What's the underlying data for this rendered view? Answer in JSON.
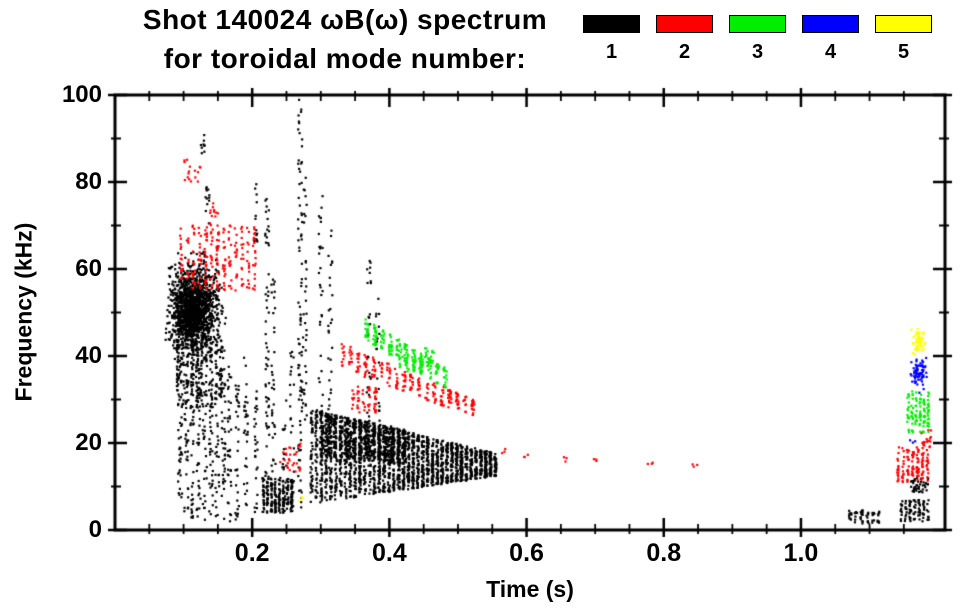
{
  "chart_data": {
    "type": "scatter",
    "title": "Shot 140024 ωB(ω) spectrum",
    "subtitle": "for toroidal mode number:",
    "xlabel": "Time (s)",
    "ylabel": "Frequency (kHz)",
    "xlim": [
      0.0,
      1.21
    ],
    "ylim": [
      0,
      100
    ],
    "grid": false,
    "legend_position": "top-right",
    "xticks": [
      {
        "v": 0.2,
        "label": "0.2"
      },
      {
        "v": 0.4,
        "label": "0.4"
      },
      {
        "v": 0.6,
        "label": "0.6"
      },
      {
        "v": 0.8,
        "label": "0.8"
      },
      {
        "v": 1.0,
        "label": "1.0"
      }
    ],
    "yticks": [
      {
        "v": 0,
        "label": "0"
      },
      {
        "v": 20,
        "label": "20"
      },
      {
        "v": 40,
        "label": "40"
      },
      {
        "v": 60,
        "label": "60"
      },
      {
        "v": 80,
        "label": "80"
      },
      {
        "v": 100,
        "label": "100"
      }
    ],
    "xtick_minor": 0.05,
    "ytick_minor": 10,
    "xtick_major_step": 0.2,
    "ytick_major_step": 20,
    "legend": [
      {
        "label": "1",
        "color": "#000000"
      },
      {
        "label": "2",
        "color": "#ff0000"
      },
      {
        "label": "3",
        "color": "#00ee00"
      },
      {
        "label": "4",
        "color": "#0000ff"
      },
      {
        "label": "5",
        "color": "#ffff00"
      }
    ],
    "series": [
      {
        "name": "toroidal mode n=1",
        "mode": 1,
        "color": "#000000",
        "clusters": [
          {
            "type": "gauss",
            "t": 0.115,
            "f": 51,
            "st": 0.035,
            "sf": 10,
            "n": 1100
          },
          {
            "type": "gauss",
            "t": 0.112,
            "f": 50,
            "st": 0.02,
            "sf": 5,
            "n": 500
          },
          {
            "type": "rect",
            "t0": 0.09,
            "t1": 0.16,
            "f0": 28,
            "f1": 44,
            "n": 220,
            "clumpT": 0.007
          },
          {
            "type": "streak",
            "t": 0.095,
            "f0": 2,
            "f1": 55,
            "n": 55
          },
          {
            "type": "streak",
            "t": 0.104,
            "f0": 2,
            "f1": 46,
            "n": 48
          },
          {
            "type": "streak",
            "t": 0.113,
            "f0": 2,
            "f1": 60,
            "n": 55
          },
          {
            "type": "streak",
            "t": 0.122,
            "f0": 2,
            "f1": 40,
            "n": 42
          },
          {
            "type": "streak",
            "t": 0.131,
            "f0": 2,
            "f1": 64,
            "n": 55
          },
          {
            "type": "streak",
            "t": 0.14,
            "f0": 3,
            "f1": 52,
            "n": 45
          },
          {
            "type": "streak",
            "t": 0.149,
            "f0": 2,
            "f1": 58,
            "n": 48
          },
          {
            "type": "streak",
            "t": 0.158,
            "f0": 2,
            "f1": 44,
            "n": 40
          },
          {
            "type": "streak",
            "t": 0.167,
            "f0": 2,
            "f1": 38,
            "n": 35
          },
          {
            "type": "streak",
            "t": 0.178,
            "f0": 2,
            "f1": 36,
            "n": 32
          },
          {
            "type": "streak",
            "t": 0.191,
            "f0": 3,
            "f1": 40,
            "n": 30
          },
          {
            "type": "streak",
            "t": 0.205,
            "f0": 4,
            "f1": 34,
            "n": 26
          },
          {
            "type": "streak",
            "t": 0.135,
            "f0": 70,
            "f1": 79,
            "n": 12
          },
          {
            "type": "streak",
            "t": 0.128,
            "f0": 86,
            "f1": 92,
            "n": 9
          },
          {
            "type": "streak",
            "t": 0.205,
            "f0": 66,
            "f1": 80,
            "n": 14
          },
          {
            "type": "streak",
            "t": 0.222,
            "f0": 8,
            "f1": 78,
            "n": 55
          },
          {
            "type": "streak",
            "t": 0.231,
            "f0": 6,
            "f1": 58,
            "n": 35
          },
          {
            "type": "streak",
            "t": 0.247,
            "f0": 4,
            "f1": 30,
            "n": 20
          },
          {
            "type": "streak",
            "t": 0.258,
            "f0": 4,
            "f1": 42,
            "n": 25
          },
          {
            "type": "streak",
            "t": 0.27,
            "f0": 2,
            "f1": 99,
            "n": 85
          },
          {
            "type": "streak",
            "t": 0.277,
            "f0": 25,
            "f1": 84,
            "n": 35
          },
          {
            "type": "streak",
            "t": 0.3,
            "f0": 18,
            "f1": 77,
            "n": 38
          },
          {
            "type": "streak",
            "t": 0.314,
            "f0": 14,
            "f1": 70,
            "n": 32
          },
          {
            "type": "streak",
            "t": 0.37,
            "f0": 24,
            "f1": 62,
            "n": 28
          },
          {
            "type": "streak",
            "t": 0.383,
            "f0": 24,
            "f1": 56,
            "n": 20
          },
          {
            "type": "band",
            "t0": 0.285,
            "t1": 0.56,
            "fc0": 17,
            "fc1": 15,
            "h0": 11,
            "h1": 2.5,
            "n": 2100,
            "clumpT": 0.007
          },
          {
            "type": "band",
            "t0": 0.3,
            "t1": 0.43,
            "fc0": 22,
            "fc1": 19,
            "h0": 5,
            "h1": 4,
            "n": 650,
            "clumpT": 0.009
          },
          {
            "type": "rect",
            "t0": 0.215,
            "t1": 0.262,
            "f0": 4,
            "f1": 12,
            "n": 240,
            "clumpT": 0.006
          },
          {
            "type": "rect",
            "t0": 1.07,
            "t1": 1.12,
            "f0": 1.5,
            "f1": 4.5,
            "n": 55,
            "clumpT": 0.008
          },
          {
            "type": "rect",
            "t0": 1.145,
            "t1": 1.19,
            "f0": 2,
            "f1": 7,
            "n": 90,
            "clumpT": 0.006
          },
          {
            "type": "rect",
            "t0": 1.16,
            "t1": 1.186,
            "f0": 8.5,
            "f1": 12,
            "n": 40
          }
        ]
      },
      {
        "name": "toroidal mode n=2",
        "mode": 2,
        "color": "#ff0000",
        "clusters": [
          {
            "type": "rect",
            "t0": 0.095,
            "t1": 0.21,
            "f0": 55,
            "f1": 70,
            "n": 230,
            "clumpT": 0.009
          },
          {
            "type": "rect",
            "t0": 0.1,
            "t1": 0.128,
            "f0": 80,
            "f1": 86,
            "n": 16
          },
          {
            "type": "rect",
            "t0": 0.138,
            "t1": 0.152,
            "f0": 70,
            "f1": 76,
            "n": 12
          },
          {
            "type": "rect",
            "t0": 0.24,
            "t1": 0.272,
            "f0": 13,
            "f1": 20,
            "n": 28
          },
          {
            "type": "band",
            "t0": 0.33,
            "t1": 0.53,
            "fc0": 40,
            "fc1": 27.5,
            "h0": 3,
            "h1": 2,
            "n": 240,
            "clumpT": 0.011
          },
          {
            "type": "rect",
            "t0": 0.345,
            "t1": 0.385,
            "f0": 27,
            "f1": 33,
            "n": 50,
            "clumpT": 0.008
          },
          {
            "type": "dots",
            "pts": [
              [
                0.565,
                18
              ],
              [
                0.6,
                17
              ],
              [
                0.655,
                16
              ],
              [
                0.7,
                15.5
              ],
              [
                0.78,
                15
              ],
              [
                0.845,
                15
              ]
            ],
            "n_each": 3
          },
          {
            "type": "rect",
            "t0": 1.14,
            "t1": 1.19,
            "f0": 11,
            "f1": 19,
            "n": 130,
            "clumpT": 0.007
          },
          {
            "type": "rect",
            "t0": 1.175,
            "t1": 1.19,
            "f0": 19,
            "f1": 23,
            "n": 20
          }
        ]
      },
      {
        "name": "toroidal mode n=3",
        "mode": 3,
        "color": "#00ee00",
        "clusters": [
          {
            "type": "band",
            "t0": 0.365,
            "t1": 0.49,
            "fc0": 46,
            "fc1": 34,
            "h0": 2.5,
            "h1": 2.5,
            "n": 200,
            "clumpT": 0.011
          },
          {
            "type": "rect",
            "t0": 0.415,
            "t1": 0.47,
            "f0": 36,
            "f1": 42,
            "n": 45,
            "clumpT": 0.009
          },
          {
            "type": "rect",
            "t0": 1.155,
            "t1": 1.19,
            "f0": 22,
            "f1": 32,
            "n": 110,
            "clumpT": 0.006
          }
        ]
      },
      {
        "name": "toroidal mode n=4",
        "mode": 4,
        "color": "#0000ff",
        "clusters": [
          {
            "type": "gauss",
            "t": 1.172,
            "f": 36,
            "st": 0.012,
            "sf": 3.5,
            "n": 70
          },
          {
            "type": "dots",
            "pts": [
              [
                1.163,
                20.5
              ]
            ],
            "n_each": 3
          }
        ]
      },
      {
        "name": "toroidal mode n=5",
        "mode": 5,
        "color": "#ffff00",
        "clusters": [
          {
            "type": "gauss",
            "t": 1.171,
            "f": 43.5,
            "st": 0.01,
            "sf": 2.8,
            "n": 55
          },
          {
            "type": "dots",
            "pts": [
              [
                0.272,
                7
              ]
            ],
            "n_each": 4
          }
        ]
      }
    ]
  }
}
